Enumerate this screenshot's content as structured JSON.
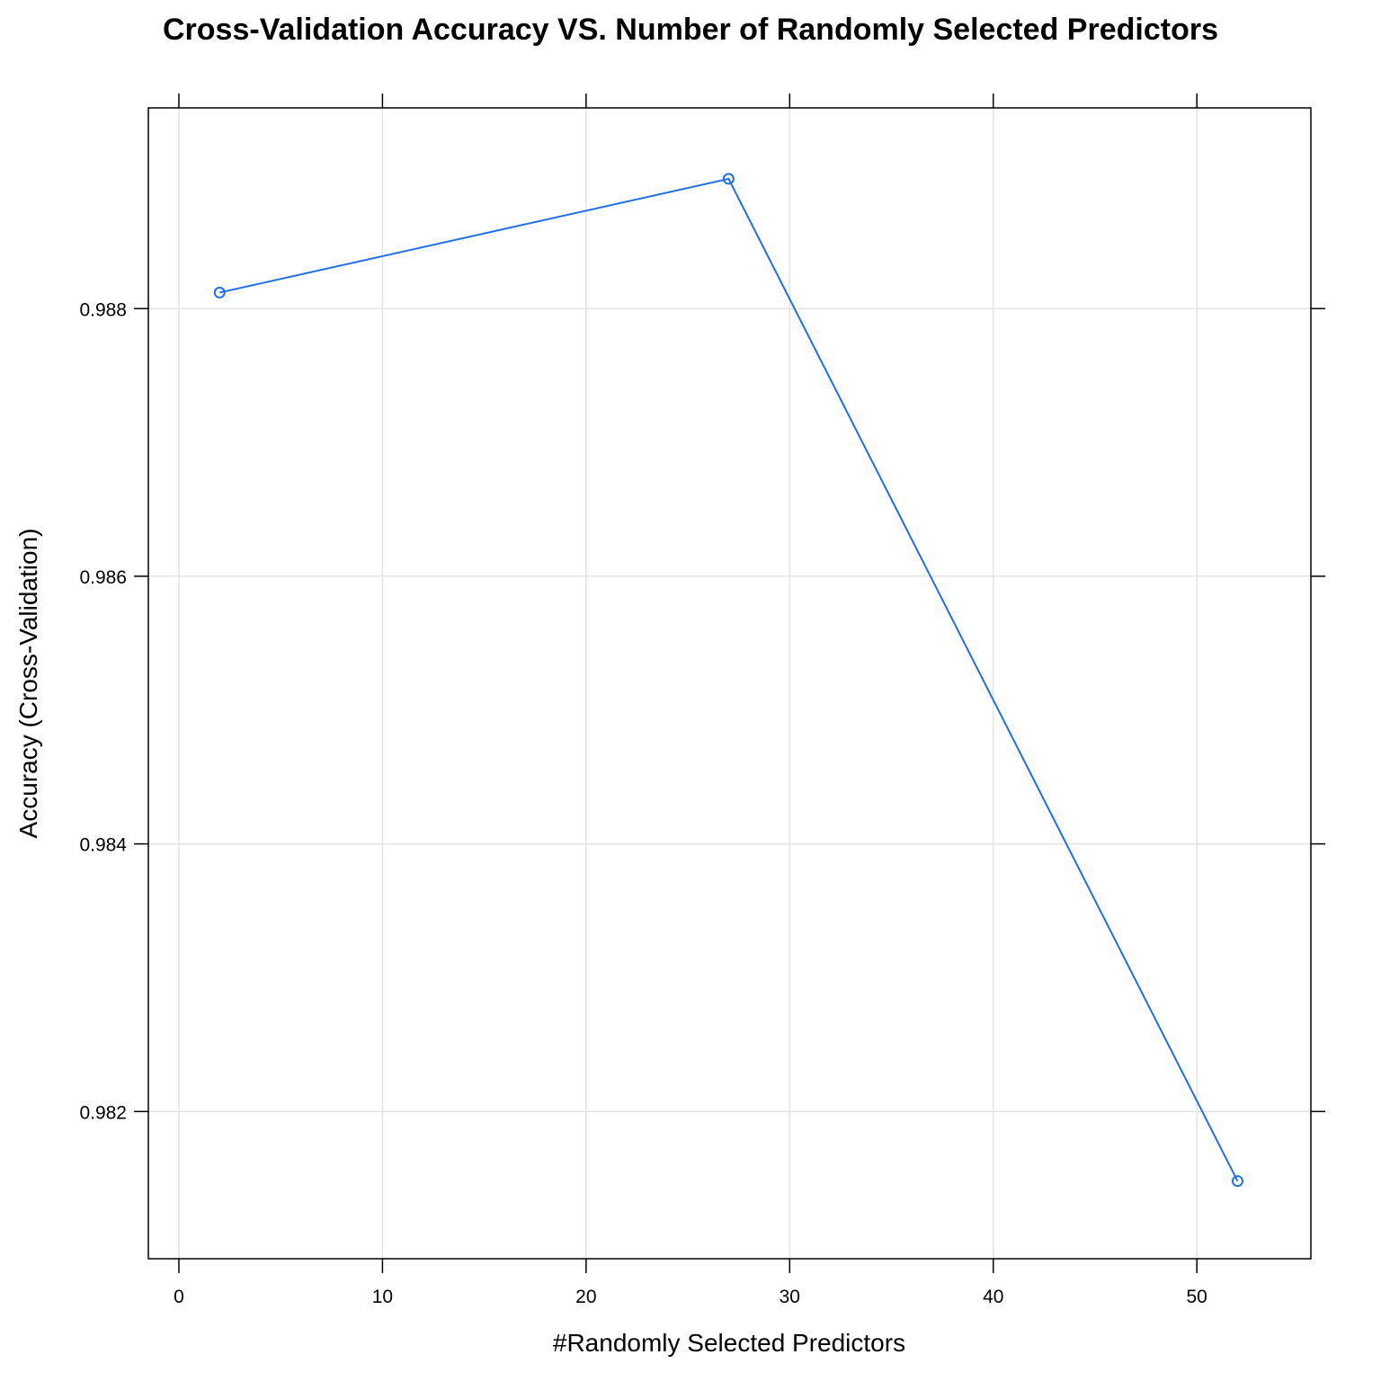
{
  "chart_data": {
    "type": "line",
    "title": "Cross-Validation Accuracy VS. Number of Randomly Selected Predictors",
    "xlabel": "#Randomly Selected Predictors",
    "ylabel": "Accuracy (Cross-Validation)",
    "x_ticks": [
      "0",
      "10",
      "20",
      "30",
      "40",
      "50"
    ],
    "y_ticks": [
      "0.982",
      "0.984",
      "0.986",
      "0.988"
    ],
    "xlim": [
      -1.5,
      55.6
    ],
    "ylim": [
      0.9809,
      0.9895
    ],
    "grid": true,
    "line_color": "#1f6fe8",
    "grid_color": "#e3e3e3",
    "series": [
      {
        "x": [
          2,
          27,
          52
        ],
        "y": [
          0.98812,
          0.98897,
          0.98148
        ]
      }
    ]
  }
}
